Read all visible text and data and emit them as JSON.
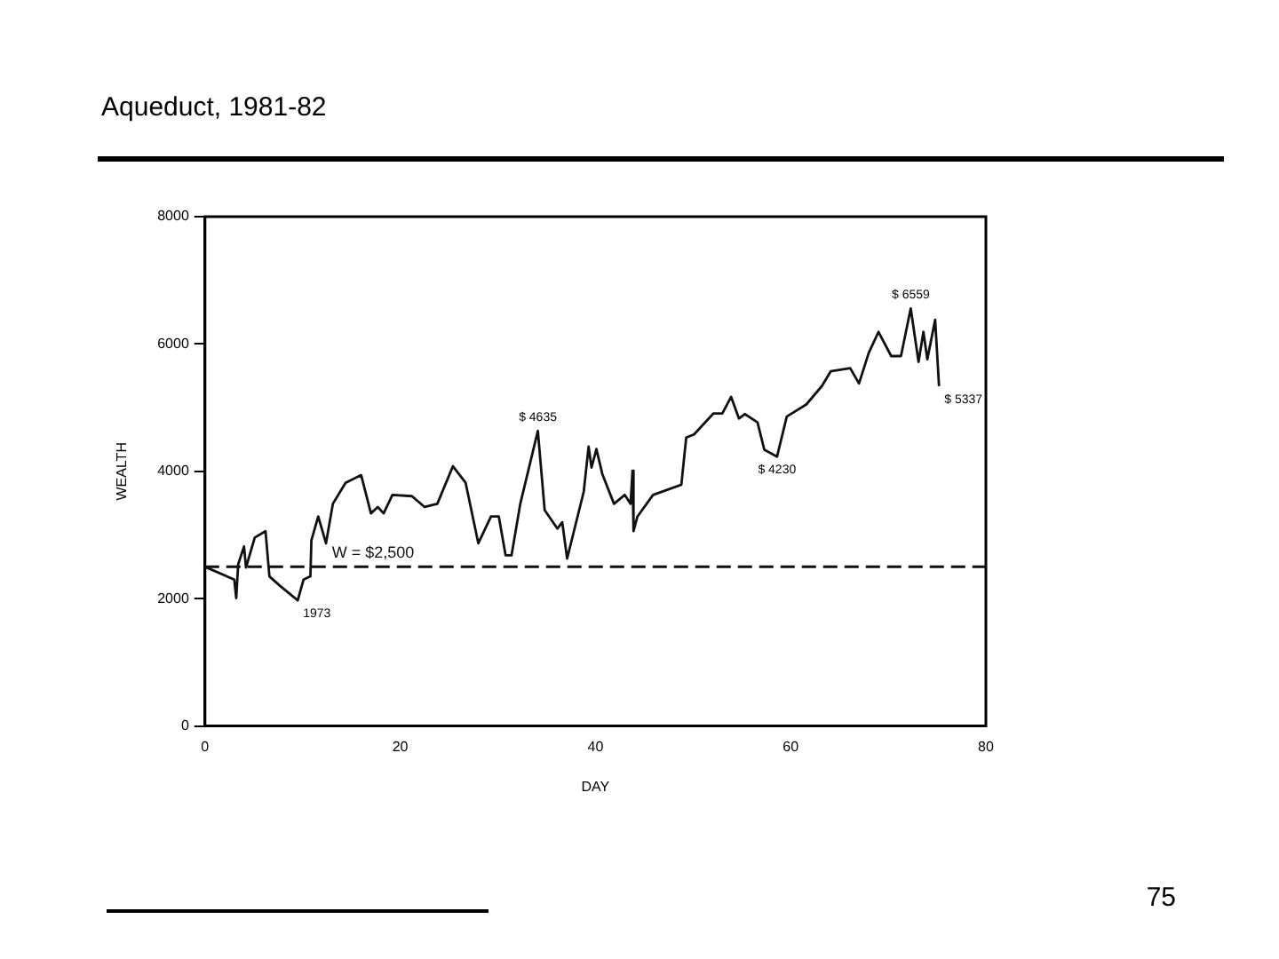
{
  "chart_data": {
    "type": "line",
    "title": "Aqueduct, 1981-82",
    "xlabel": "DAY",
    "ylabel": "WEALTH",
    "xlim": [
      0,
      80
    ],
    "xticks": [
      0,
      20,
      40,
      60,
      80
    ],
    "ylim": [
      0,
      8000
    ],
    "yticks": [
      0,
      2000,
      4000,
      6000,
      8000
    ],
    "grid": false,
    "legend": false,
    "marker": "none",
    "line_style": "solid",
    "series": [
      {
        "color": "#111111",
        "x": [
          0,
          3,
          3.2,
          3.4,
          4,
          4.2,
          5.1,
          6.2,
          6.6,
          7.7,
          9.5,
          10.1,
          10.8,
          10.9,
          11.6,
          12.4,
          13.1,
          14.4,
          16,
          17,
          17.7,
          18.3,
          19.2,
          21.2,
          22.5,
          23.8,
          25.4,
          26.7,
          28,
          29.3,
          30.1,
          30.8,
          31.4,
          32.3,
          34.1,
          34.8,
          36.1,
          36.6,
          37.1,
          38.8,
          39.3,
          39.6,
          40.1,
          40.7,
          41.9,
          43,
          43.6,
          43.8,
          43.9,
          44.3,
          45.9,
          48.8,
          49.3,
          50.1,
          52.1,
          53,
          53.9,
          54.7,
          55.3,
          56.6,
          57.3,
          58.6,
          59.6,
          61.6,
          63.2,
          64.1,
          66.1,
          67,
          68,
          69,
          70.3,
          71.3,
          72.3,
          73.1,
          73.6,
          74,
          74.8,
          75.2
        ],
        "values": [
          2500,
          2300,
          2010,
          2540,
          2820,
          2490,
          2960,
          3060,
          2350,
          2200,
          1973,
          2300,
          2350,
          2915,
          3290,
          2870,
          3490,
          3820,
          3940,
          3340,
          3440,
          3340,
          3630,
          3610,
          3440,
          3490,
          4080,
          3820,
          2870,
          3290,
          3290,
          2680,
          2680,
          3490,
          4635,
          3390,
          3100,
          3200,
          2630,
          3680,
          4390,
          4060,
          4350,
          3960,
          3490,
          3630,
          3490,
          4010,
          3060,
          3290,
          3630,
          3790,
          4530,
          4580,
          4910,
          4910,
          5170,
          4830,
          4900,
          4770,
          4340,
          4230,
          4860,
          5050,
          5340,
          5570,
          5620,
          5380,
          5860,
          6190,
          5810,
          5810,
          6559,
          5720,
          6190,
          5760,
          6380,
          5337
        ]
      }
    ],
    "ref_lines": [
      {
        "axis": "y",
        "value": 2500,
        "label": "W = $2,500",
        "line_style": "dashed",
        "color": "#111111"
      }
    ],
    "annotations": [
      {
        "text": "1973",
        "x": 9.5,
        "y": 1973
      },
      {
        "text": "$ 4635",
        "x": 34.1,
        "y": 4635
      },
      {
        "text": "$ 4230",
        "x": 58.6,
        "y": 4230
      },
      {
        "text": "$ 6559",
        "x": 72.3,
        "y": 6559
      },
      {
        "text": "$ 5337",
        "x": 75.2,
        "y": 5337
      },
      "75"
    ]
  }
}
